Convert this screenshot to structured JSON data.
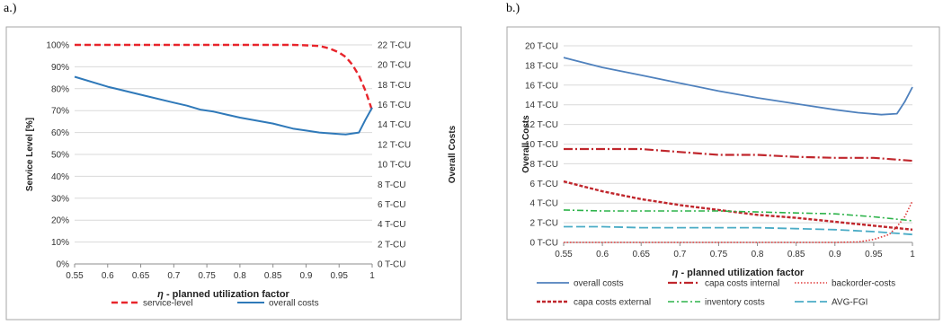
{
  "panel_labels": {
    "a": "a.)",
    "b": "b.)"
  },
  "chart_data": [
    {
      "type": "line",
      "id": "a",
      "title": "",
      "xlabel_prefix": "η",
      "xlabel": " - planned utilization factor",
      "ylabel": "Service Level [%]",
      "ylabel_right": "Overall Costs",
      "x_ticks": [
        "0.55",
        "0.6",
        "0.65",
        "0.7",
        "0.75",
        "0.8",
        "0.85",
        "0.9",
        "0.95",
        "1"
      ],
      "xlim": [
        0.55,
        1.0
      ],
      "y_ticks_left": [
        "0%",
        "10%",
        "20%",
        "30%",
        "40%",
        "50%",
        "60%",
        "70%",
        "80%",
        "90%",
        "100%"
      ],
      "ylim_left": [
        0,
        100
      ],
      "y_ticks_right": [
        "0 T-CU",
        "2 T-CU",
        "4 T-CU",
        "6 T-CU",
        "8 T-CU",
        "10 T-CU",
        "12 T-CU",
        "14 T-CU",
        "16 T-CU",
        "18 T-CU",
        "20 T-CU",
        "22 T-CU"
      ],
      "ylim_right": [
        0,
        22
      ],
      "grid": true,
      "legend_position": "bottom",
      "series": [
        {
          "name": "service-level",
          "axis": "left",
          "color": "#e8242b",
          "dash": "7,4",
          "width": 2.4,
          "x": [
            0.55,
            0.6,
            0.65,
            0.7,
            0.75,
            0.8,
            0.85,
            0.88,
            0.9,
            0.92,
            0.93,
            0.94,
            0.95,
            0.96,
            0.97,
            0.98,
            0.99,
            1.0
          ],
          "y": [
            100,
            100,
            100,
            100,
            100,
            100,
            100,
            100,
            99.8,
            99.5,
            98.8,
            97.8,
            96.5,
            94.5,
            91,
            86,
            79,
            70
          ]
        },
        {
          "name": "overall costs",
          "axis": "right",
          "color": "#2f79b9",
          "dash": "",
          "width": 2,
          "x": [
            0.55,
            0.6,
            0.65,
            0.7,
            0.72,
            0.74,
            0.76,
            0.8,
            0.85,
            0.88,
            0.9,
            0.92,
            0.94,
            0.96,
            0.98,
            0.99,
            1.0
          ],
          "y": [
            18.8,
            17.8,
            17.0,
            16.2,
            15.9,
            15.5,
            15.3,
            14.7,
            14.1,
            13.6,
            13.4,
            13.2,
            13.1,
            13.0,
            13.2,
            14.5,
            15.7
          ]
        }
      ]
    },
    {
      "type": "line",
      "id": "b",
      "title": "",
      "xlabel_prefix": "η",
      "xlabel": " - planned utilization factor",
      "ylabel": "Overall Costs",
      "x_ticks": [
        "0.55",
        "0.6",
        "0.65",
        "0.7",
        "0.75",
        "0.8",
        "0.85",
        "0.9",
        "0.95",
        "1"
      ],
      "xlim": [
        0.55,
        1.0
      ],
      "y_ticks_left": [
        "0 T-CU",
        "2 T-CU",
        "4 T-CU",
        "6 T-CU",
        "8 T-CU",
        "10 T-CU",
        "12 T-CU",
        "14 T-CU",
        "16 T-CU",
        "18 T-CU",
        "20 T-CU"
      ],
      "ylim_left": [
        0,
        20
      ],
      "grid": true,
      "legend_position": "bottom",
      "series": [
        {
          "name": "overall costs",
          "color": "#4f81bd",
          "dash": "",
          "width": 1.8,
          "x": [
            0.55,
            0.6,
            0.65,
            0.7,
            0.75,
            0.8,
            0.85,
            0.9,
            0.93,
            0.96,
            0.98,
            0.99,
            1.0
          ],
          "y": [
            18.8,
            17.8,
            17.0,
            16.2,
            15.4,
            14.7,
            14.1,
            13.5,
            13.2,
            13.0,
            13.1,
            14.3,
            15.8
          ]
        },
        {
          "name": "capa costs internal",
          "color": "#c0262c",
          "dash": "10,3,2,3",
          "width": 2.2,
          "x": [
            0.55,
            0.6,
            0.65,
            0.7,
            0.75,
            0.8,
            0.85,
            0.9,
            0.95,
            1.0
          ],
          "y": [
            9.5,
            9.5,
            9.5,
            9.2,
            8.9,
            8.9,
            8.7,
            8.6,
            8.6,
            8.3
          ]
        },
        {
          "name": "backorder-costs",
          "color": "#e03a3a",
          "dash": "1.5,2",
          "width": 1.6,
          "x": [
            0.55,
            0.6,
            0.65,
            0.7,
            0.75,
            0.8,
            0.85,
            0.9,
            0.93,
            0.95,
            0.97,
            0.98,
            0.99,
            1.0
          ],
          "y": [
            0,
            0,
            0,
            0,
            0,
            0,
            0,
            0,
            0.05,
            0.3,
            0.8,
            1.6,
            2.6,
            4.2
          ]
        },
        {
          "name": "capa costs external",
          "color": "#c0262c",
          "dash": "4,2",
          "width": 2.4,
          "x": [
            0.55,
            0.6,
            0.65,
            0.7,
            0.75,
            0.8,
            0.85,
            0.9,
            0.95,
            1.0
          ],
          "y": [
            6.2,
            5.2,
            4.4,
            3.8,
            3.3,
            2.8,
            2.5,
            2.1,
            1.7,
            1.3
          ]
        },
        {
          "name": "inventory costs",
          "color": "#2db34a",
          "dash": "7,3,2,3",
          "width": 1.6,
          "x": [
            0.55,
            0.6,
            0.65,
            0.7,
            0.75,
            0.8,
            0.85,
            0.9,
            0.95,
            1.0
          ],
          "y": [
            3.3,
            3.2,
            3.2,
            3.2,
            3.2,
            3.1,
            3.0,
            2.9,
            2.6,
            2.2
          ]
        },
        {
          "name": "AVG-FGI",
          "color": "#4bacc6",
          "dash": "10,4",
          "width": 1.8,
          "x": [
            0.55,
            0.6,
            0.65,
            0.7,
            0.75,
            0.8,
            0.85,
            0.9,
            0.95,
            1.0
          ],
          "y": [
            1.6,
            1.6,
            1.5,
            1.5,
            1.5,
            1.5,
            1.4,
            1.3,
            1.1,
            0.8
          ]
        }
      ]
    }
  ]
}
